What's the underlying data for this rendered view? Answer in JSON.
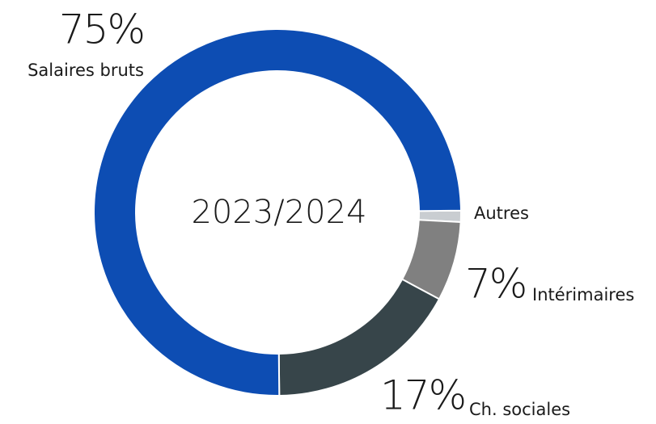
{
  "chart_data": {
    "type": "donut",
    "center_label": "2023/2024",
    "categories": [
      "Autres",
      "Intérimaires",
      "Ch. sociales",
      "Salaires bruts"
    ],
    "values": [
      1,
      7,
      17,
      75
    ],
    "value_labels": [
      null,
      "7%",
      "17%",
      "75%"
    ],
    "colors": [
      "#c9cdd1",
      "#808080",
      "#37454a",
      "#0d4db3"
    ]
  }
}
